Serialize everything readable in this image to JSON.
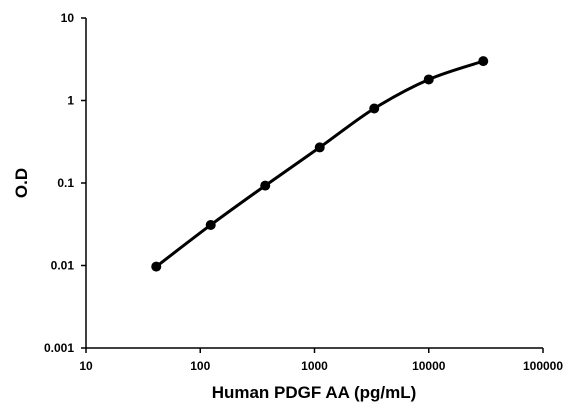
{
  "colors": {
    "line": "#000000",
    "marker": "#000000",
    "axis": "#000000",
    "background": "#ffffff"
  },
  "chart_data": {
    "type": "line",
    "title": "",
    "xlabel": "Human PDGF AA (pg/mL)",
    "ylabel": "O.D",
    "x_scale": "log",
    "y_scale": "log",
    "xlim": [
      10,
      100000
    ],
    "ylim": [
      0.001,
      10
    ],
    "x_ticks": [
      10,
      100,
      1000,
      10000,
      100000
    ],
    "x_tick_labels": [
      "10",
      "100",
      "1000",
      "10000",
      "100000"
    ],
    "y_ticks": [
      0.001,
      0.01,
      0.1,
      1,
      10
    ],
    "y_tick_labels": [
      "0.001",
      "0.01",
      "0.1",
      "1",
      "10"
    ],
    "grid": false,
    "legend": "none",
    "series": [
      {
        "x": [
          41.2,
          123.5,
          370.4,
          1111,
          3333,
          10000,
          30000
        ],
        "y": [
          0.0097,
          0.031,
          0.093,
          0.27,
          0.8,
          1.8,
          3.0
        ],
        "marker": "circle",
        "smooth": true
      }
    ]
  }
}
